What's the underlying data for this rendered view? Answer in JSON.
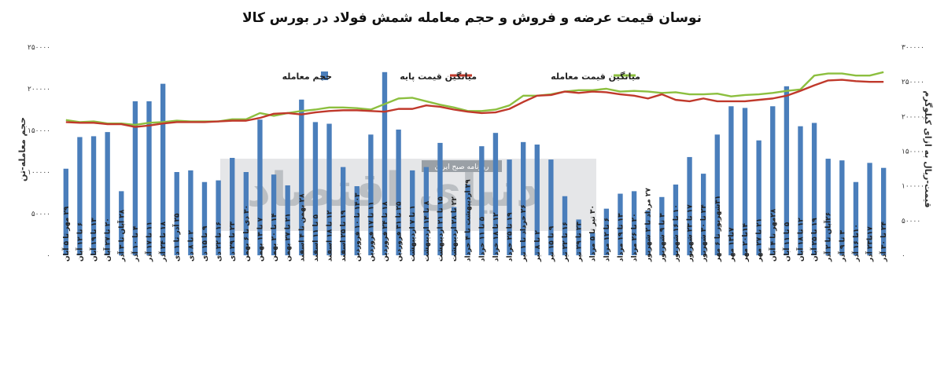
{
  "chart_data": {
    "type": "bar+line",
    "title": "نوسان قیمت عرضه و فروش و حجم معامله شمش فولاد در بورس کالا",
    "ylabel_left": "حجم معامله-تن",
    "ylabel_right": "قیمت-ریال به ازای کیلوگرم",
    "ylim_left": [
      0,
      250000
    ],
    "ylim_right": [
      0,
      300000
    ],
    "yticks_left": [
      "۰",
      "۵۰۰۰۰",
      "۱۰۰۰۰۰",
      "۱۵۰۰۰۰",
      "۲۰۰۰۰۰",
      "۲۵۰۰۰۰"
    ],
    "yticks_right": [
      "۰",
      "۵۰۰۰۰",
      "۱۰۰۰۰۰",
      "۱۵۰۰۰۰",
      "۲۰۰۰۰۰",
      "۲۵۰۰۰۰",
      "۳۰۰۰۰۰"
    ],
    "legend": {
      "bar": "حجم معامله",
      "base": "میانگین قیمت پایه",
      "trade": "میانگین قیمت معامله"
    },
    "colors": {
      "bar": "#4a7ebb",
      "base": "#c0392b",
      "trade": "#8cbf3f"
    },
    "categories": [
      "۲۹ مهر تا ۵ آبان",
      "۶ تا ۱۲ آبان",
      "۱۳ تا ۱۹ آبان",
      "۲۰ تا ۲۷ آبان",
      "۲۸ آبان تا ۳ آذر",
      "۴ تا ۱۰ آذر",
      "۱۱ تا ۱۷ آذر",
      "۱۸ تا ۲۴ آذر",
      "۲۵ آذر تا ۱ دی",
      "۲ تا ۸ دی",
      "۹ تا ۱۵ دی",
      "۱۶ تا ۲۲ دی",
      "۲۳ تا ۲۹ دی",
      "۳۰ دی تا ۶ بهمن",
      "۷ تا ۱۳ بهمن",
      "۱۴ تا ۲۰ بهمن",
      "۲۱ تا ۲۷ بهمن",
      "۲۸ بهمن تا ۴ اسفند",
      "۵ تا ۱۱ اسفند",
      "۱۲ تا ۱۸ اسفند",
      "۱۹ تا ۲۵ اسفند",
      "۱۴۰۳ تا ۱۰ فروردین",
      "۱۱ تا ۱۷ فروردین",
      "۱۸ تا ۲۴ فروردین",
      "۲۵ تا ۳۱ فروردین",
      "۱ تا ۷ اردیبهشت",
      "۸ تا ۱۴ اردیبهشت",
      "۱۵ تا ۲۱ اردیبهشت",
      "۲۲ تا ۲۸ اردیبهشت",
      "۲۹ اردیبهشت تا ۴ خرداد",
      "۵ تا ۱۱ خرداد",
      "۱۲ تا ۱۸ خرداد",
      "۱۹ تا ۲۵ خرداد",
      "۲۶ خرداد تا ۱ تیر",
      "۲ تا ۸ تیر",
      "۹ تا ۱۵ تیر",
      "۱۶ تا ۲۲ تیر",
      "۲۳ تا ۲۹ تیر",
      "۳۰ تیر تا ۵ مرداد",
      "۶ تا ۱۲ مرداد",
      "۱۳ تا ۱۹ مرداد",
      "۲۰ تا ۲۶ مرداد",
      "۲۷ مرداد تا ۲ شهریور",
      "۳ تا ۹ شهریور",
      "۱۰ تا ۱۶ شهریور",
      "۱۷ تا ۲۳ شهریور",
      "۲۴ تا ۳۰ شهریور",
      "۳۱شهریور تا ۶ مهر",
      "۷تا۱۳ مهر",
      "۱۴تا۲۰ مهر",
      "۲۱ تا ۲۷ مهر",
      "۲۸مهر تا ۴ آبان",
      "۵ تا ۱۱ آبان",
      "۱۲ تا ۱۸ آبان",
      "۱۹ تا ۲۵ آبان",
      "۲۶آبان تا ۲ آذر",
      "۳ تا ۹ آذر",
      "۱۰تا ۱۶ آذر",
      "۱۷تا۲۳ آذر",
      "۲۴ تا ۳۰ آذر"
    ],
    "volume": [
      104000,
      142000,
      143000,
      148000,
      77000,
      185000,
      185000,
      206000,
      100000,
      102000,
      88000,
      90000,
      117000,
      100000,
      163000,
      97000,
      84000,
      187000,
      160000,
      158000,
      106000,
      83000,
      145000,
      220000,
      151000,
      102000,
      106000,
      135000,
      58000,
      85000,
      131000,
      147000,
      115000,
      136000,
      133000,
      115000,
      71000,
      43000,
      27000,
      56000,
      74000,
      77000,
      54000,
      70000,
      85000,
      118000,
      98000,
      145000,
      179000,
      177000,
      138000,
      179000,
      203000,
      155000,
      159000,
      116000,
      114000,
      88000,
      111000,
      105000
    ],
    "base_price": [
      192000,
      191000,
      191000,
      189000,
      189000,
      185000,
      187000,
      190000,
      192000,
      192000,
      192000,
      193000,
      194000,
      194000,
      198000,
      204000,
      205000,
      203000,
      206000,
      208000,
      209000,
      209000,
      208000,
      207000,
      211000,
      211000,
      216000,
      214000,
      210000,
      207000,
      205000,
      206000,
      211000,
      221000,
      230000,
      231000,
      236000,
      234000,
      236000,
      235000,
      232000,
      230000,
      226000,
      232000,
      224000,
      222000,
      226000,
      222000,
      222000,
      222000,
      224000,
      226000,
      230000,
      237000,
      245000,
      252000,
      253000,
      251000,
      250000,
      250000
    ],
    "trade_price": [
      195000,
      192000,
      193000,
      190000,
      190000,
      188000,
      191000,
      192000,
      194000,
      193000,
      193000,
      193000,
      196000,
      196000,
      205000,
      201000,
      205000,
      208000,
      210000,
      213000,
      213000,
      212000,
      210000,
      218000,
      226000,
      227000,
      222000,
      217000,
      213000,
      208000,
      208000,
      210000,
      216000,
      230000,
      230000,
      232000,
      236000,
      238000,
      238000,
      240000,
      236000,
      237000,
      236000,
      234000,
      235000,
      232000,
      232000,
      233000,
      229000,
      231000,
      232000,
      234000,
      237000,
      239000,
      259000,
      262000,
      262000,
      259000,
      259000,
      264000
    ]
  },
  "watermark": {
    "main": "دنیای اقتصاد",
    "sub": "روزنامه صبح ایران"
  }
}
